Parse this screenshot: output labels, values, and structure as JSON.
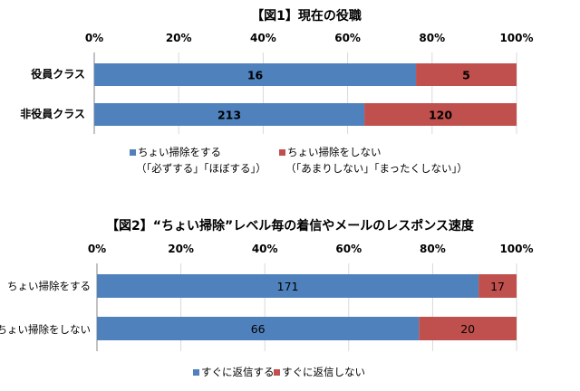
{
  "chart_data": [
    {
      "type": "bar",
      "orientation": "horizontal",
      "stacked": "percent",
      "title": "【図1】現在の役職",
      "categories": [
        "役員クラス",
        "非役員クラス"
      ],
      "x_ticks": [
        "0%",
        "20%",
        "40%",
        "60%",
        "80%",
        "100%"
      ],
      "xlim": [
        0,
        100
      ],
      "grid": true,
      "legend_placement": "bottom",
      "series": [
        {
          "name": "ちょい掃除をする",
          "sub": "（「必ずする」「ほぼする」）",
          "color": "#4F81BD",
          "values": [
            16,
            213
          ]
        },
        {
          "name": "ちょい掃除をしない",
          "sub": "（「あまりしない」「まったくしない」）",
          "color": "#C0504D",
          "values": [
            5,
            120
          ]
        }
      ]
    },
    {
      "type": "bar",
      "orientation": "horizontal",
      "stacked": "percent",
      "title": "【図2】“ちょい掃除”レベル毎の着信やメールのレスポンス速度",
      "categories": [
        "ちょい掃除をする",
        "ちょい掃除をしない"
      ],
      "x_ticks": [
        "0%",
        "20%",
        "40%",
        "60%",
        "80%",
        "100%"
      ],
      "xlim": [
        0,
        100
      ],
      "grid": true,
      "legend_placement": "bottom",
      "series": [
        {
          "name": "すぐに返信する",
          "color": "#4F81BD",
          "values": [
            171,
            66
          ]
        },
        {
          "name": "すぐに返信しない",
          "color": "#C0504D",
          "values": [
            17,
            20
          ]
        }
      ]
    }
  ]
}
